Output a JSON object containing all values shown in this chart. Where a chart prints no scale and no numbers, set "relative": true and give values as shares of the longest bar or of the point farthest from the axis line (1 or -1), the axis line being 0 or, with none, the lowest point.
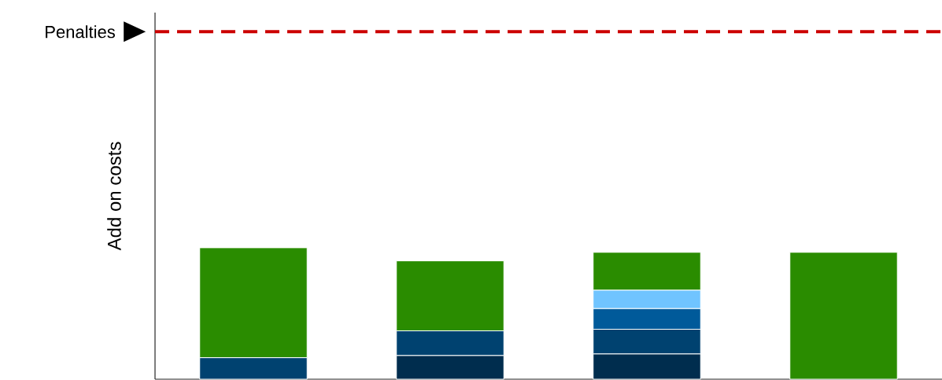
{
  "chart_data": {
    "type": "bar",
    "stacked": true,
    "relative": true,
    "ylabel": "Add on costs",
    "categories": [
      null,
      null,
      null,
      null
    ],
    "series": [
      {
        "color": "#002d4e",
        "values": [
          null,
          0.181,
          0.193,
          null
        ]
      },
      {
        "color": "#004270",
        "values": [
          0.164,
          0.187,
          0.187,
          null
        ]
      },
      {
        "color": "#005a9a",
        "values": [
          null,
          null,
          0.158,
          null
        ]
      },
      {
        "color": "#70c4ff",
        "values": [
          null,
          null,
          0.14,
          null
        ]
      },
      {
        "color": "#2a8c00",
        "values": [
          0.836,
          0.532,
          0.287,
          0.965
        ]
      }
    ],
    "ref_lines": [
      {
        "axis": "y",
        "value": 2.643,
        "label": "Penalties",
        "color": "#cc0000",
        "line_style": "dashed"
      }
    ]
  }
}
